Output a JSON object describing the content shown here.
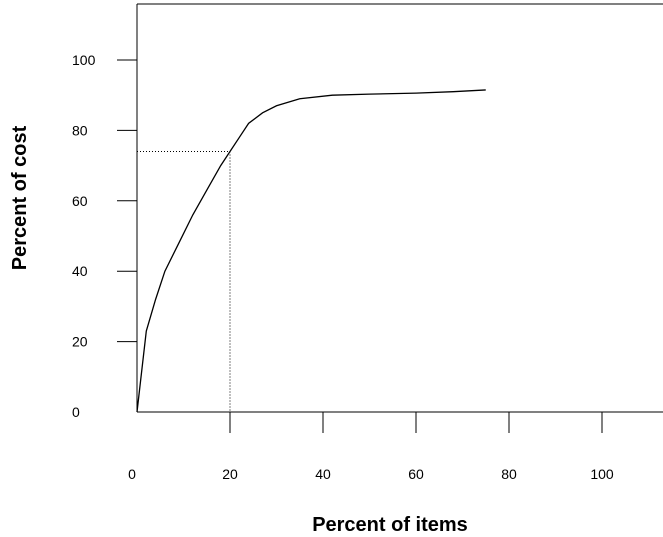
{
  "chart_data": {
    "type": "line",
    "xlabel": "Percent of items",
    "ylabel": "Percent of cost",
    "xticks": [
      0,
      20,
      40,
      60,
      80,
      100
    ],
    "yticks": [
      0,
      20,
      40,
      60,
      80,
      100
    ],
    "xlim": [
      0,
      113
    ],
    "ylim": [
      0,
      113
    ],
    "series": [
      {
        "x": [
          0,
          2,
          4,
          6,
          9,
          12,
          15,
          18,
          20,
          22,
          24,
          27,
          30,
          35,
          42,
          50,
          60,
          68,
          75
        ],
        "y": [
          0,
          23,
          32,
          40,
          48,
          56,
          63,
          70,
          74,
          78,
          82,
          85,
          87,
          89,
          90,
          90.3,
          90.6,
          91,
          91.5
        ],
        "color": "#000000",
        "style": "solid"
      }
    ],
    "reference_lines": [
      {
        "x": [
          0,
          20,
          20
        ],
        "y": [
          74,
          74,
          0
        ],
        "color": "#000000",
        "style": "dotted"
      }
    ],
    "grid": false,
    "legend": "none"
  }
}
